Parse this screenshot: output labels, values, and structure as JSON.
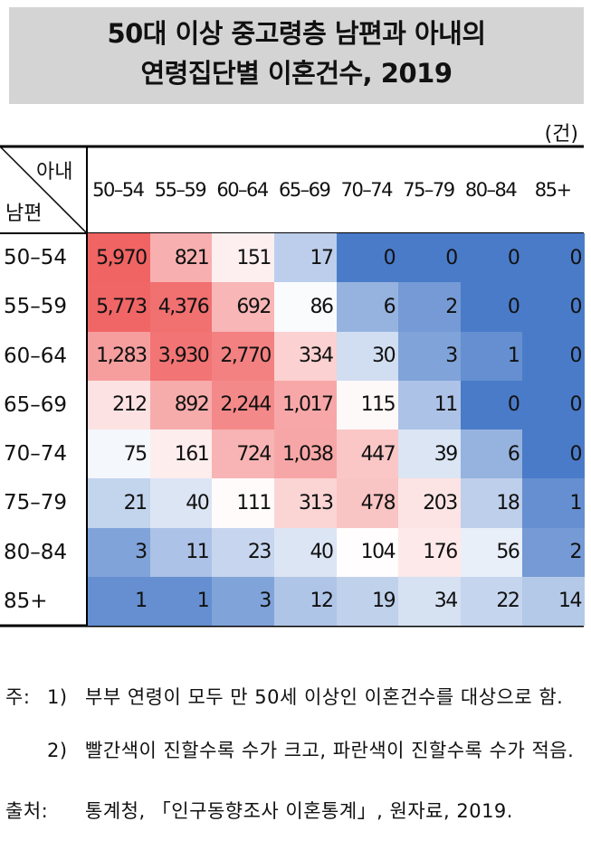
{
  "title": [
    "50대 이상 중고령층 남편과 아내의",
    "연령집단별 이혼건수, 2019"
  ],
  "unit": "(건)",
  "table": {
    "corner_col": "아내",
    "corner_row": "남편",
    "columns": [
      "50–54",
      "55–59",
      "60–64",
      "65–69",
      "70–74",
      "75–79",
      "80–84",
      "85+"
    ],
    "rows": [
      {
        "label": "50–54",
        "cells": [
          "5,970",
          "821",
          "151",
          "17",
          "0",
          "0",
          "0",
          "0"
        ]
      },
      {
        "label": "55–59",
        "cells": [
          "5,773",
          "4,376",
          "692",
          "86",
          "6",
          "2",
          "0",
          "0"
        ]
      },
      {
        "label": "60–64",
        "cells": [
          "1,283",
          "3,930",
          "2,770",
          "334",
          "30",
          "3",
          "1",
          "0"
        ]
      },
      {
        "label": "65–69",
        "cells": [
          "212",
          "892",
          "2,244",
          "1,017",
          "115",
          "11",
          "0",
          "0"
        ]
      },
      {
        "label": "70–74",
        "cells": [
          "75",
          "161",
          "724",
          "1,038",
          "447",
          "39",
          "6",
          "0"
        ]
      },
      {
        "label": "75–79",
        "cells": [
          "21",
          "40",
          "111",
          "313",
          "478",
          "203",
          "18",
          "1"
        ]
      },
      {
        "label": "80–84",
        "cells": [
          "3",
          "11",
          "23",
          "40",
          "104",
          "176",
          "56",
          "2"
        ]
      },
      {
        "label": "85+",
        "cells": [
          "1",
          "1",
          "3",
          "12",
          "19",
          "34",
          "22",
          "14"
        ]
      }
    ]
  },
  "notes": {
    "label": "주:",
    "items": [
      {
        "num": "1)",
        "text": "부부 연령이 모두 만 50세 이상인 이혼건수를 대상으로 함."
      },
      {
        "num": "2)",
        "text": "빨간색이 진할수록 수가 크고, 파란색이 진할수록 수가 적음."
      }
    ]
  },
  "source": {
    "label": "출처:",
    "text": "통계청, 「인구동향조사 이혼통계」, 원자료, 2019."
  }
}
